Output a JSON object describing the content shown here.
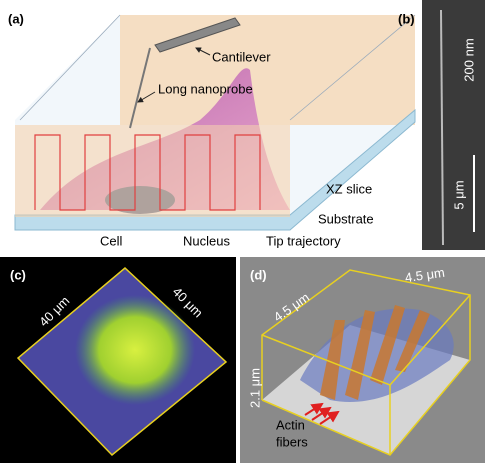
{
  "panel_a": {
    "label": "(a)",
    "cantilever": "Cantilever",
    "nanoprobe": "Long nanoprobe",
    "xz_slice": "XZ slice",
    "substrate": "Substrate",
    "cell": "Cell",
    "nucleus": "Nucleus",
    "trajectory": "Tip trajectory"
  },
  "panel_b": {
    "label": "(b)",
    "width_label": "200 nm",
    "scale_label": "5 μm"
  },
  "panel_c": {
    "label": "(c)",
    "side_left": "40 μm",
    "side_right": "40 μm"
  },
  "panel_d": {
    "label": "(d)",
    "top_right": "4.5 μm",
    "top_left": "4.5 μm",
    "height": "2.1 μm",
    "annotation": [
      "Actin",
      "fibers"
    ]
  }
}
